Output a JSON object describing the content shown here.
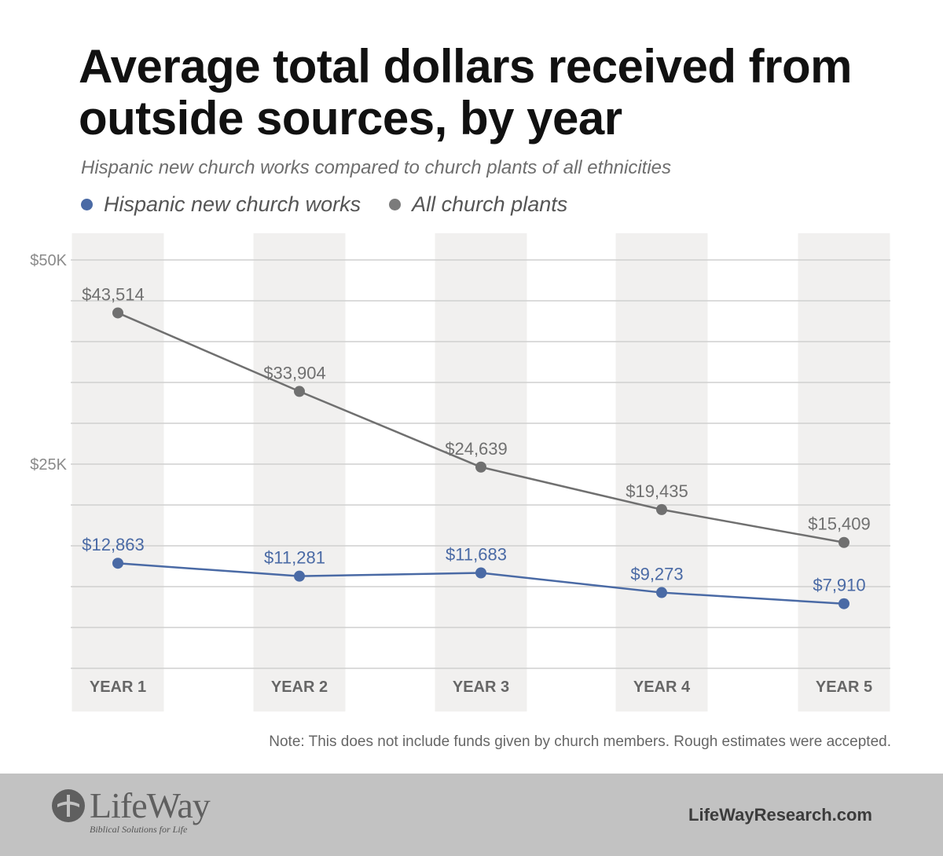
{
  "title": "Average total dollars received from outside sources, by year",
  "subtitle": "Hispanic new church works compared to church plants of all ethnicities",
  "legend": [
    {
      "name": "Hispanic new church works",
      "color": "#4a6aa5"
    },
    {
      "name": "All church plants",
      "color": "#7b7b7b"
    }
  ],
  "chart_data": {
    "type": "line",
    "categories": [
      "YEAR 1",
      "YEAR 2",
      "YEAR 3",
      "YEAR 4",
      "YEAR 5"
    ],
    "series": [
      {
        "name": "Hispanic new church works",
        "color": "#4a6aa5",
        "values": [
          12863,
          11281,
          11683,
          9273,
          7910
        ],
        "labels": [
          "$12,863",
          "$11,281",
          "$11,683",
          "$9,273",
          "$7,910"
        ]
      },
      {
        "name": "All church plants",
        "color": "#707070",
        "values": [
          43514,
          33904,
          24639,
          19435,
          15409
        ],
        "labels": [
          "$43,514",
          "$33,904",
          "$24,639",
          "$19,435",
          "$15,409"
        ]
      }
    ],
    "y_ticks": [
      {
        "value": 50000,
        "label": "$50K"
      },
      {
        "value": 25000,
        "label": "$25K"
      }
    ],
    "ylim": [
      0,
      50000
    ],
    "grid": true,
    "legend_position": "top-left"
  },
  "note": "Note: This does not include funds given by church members. Rough estimates were accepted.",
  "footer": {
    "logo_text": "LifeWay",
    "tagline": "Biblical Solutions for Life",
    "website": "LifeWayResearch.com"
  }
}
